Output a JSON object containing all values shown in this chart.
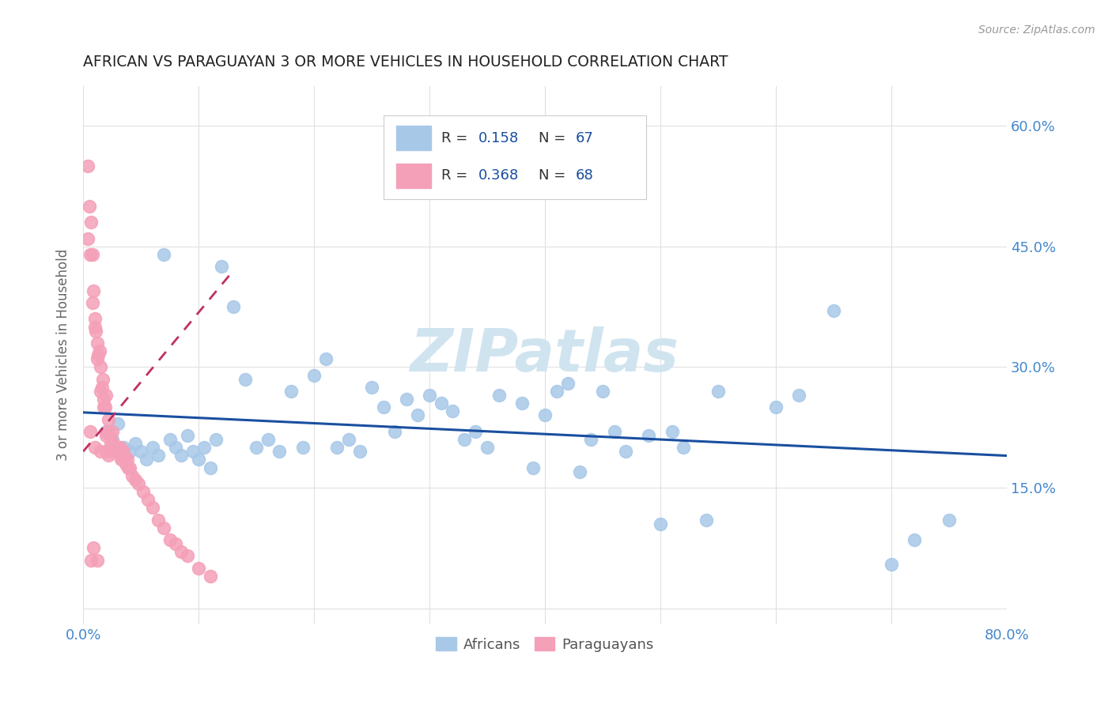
{
  "title": "AFRICAN VS PARAGUAYAN 3 OR MORE VEHICLES IN HOUSEHOLD CORRELATION CHART",
  "source": "Source: ZipAtlas.com",
  "ylabel": "3 or more Vehicles in Household",
  "x_tick_positions": [
    0.0,
    0.1,
    0.2,
    0.3,
    0.4,
    0.5,
    0.6,
    0.7,
    0.8
  ],
  "x_tick_labels": [
    "0.0%",
    "",
    "",
    "",
    "",
    "",
    "",
    "",
    "80.0%"
  ],
  "y_tick_positions": [
    0.0,
    0.15,
    0.3,
    0.45,
    0.6
  ],
  "y_tick_labels": [
    "",
    "15.0%",
    "30.0%",
    "45.0%",
    "60.0%"
  ],
  "xlim": [
    0.0,
    0.8
  ],
  "ylim": [
    -0.02,
    0.65
  ],
  "watermark": "ZIPatlas",
  "legend_R_african": "0.158",
  "legend_N_african": "67",
  "legend_R_paraguayan": "0.368",
  "legend_N_paraguayan": "68",
  "african_color": "#a8c8e8",
  "paraguayan_color": "#f4a0b8",
  "african_line_color": "#1a4fa0",
  "paraguayan_line_color": "#c03060",
  "background_color": "#ffffff",
  "grid_color": "#e0e0e0",
  "title_color": "#222222",
  "tick_color": "#4488cc",
  "ylabel_color": "#666666",
  "source_color": "#999999",
  "watermark_color": "#d0e4f0",
  "africans_x": [
    0.02,
    0.025,
    0.03,
    0.035,
    0.04,
    0.045,
    0.05,
    0.055,
    0.06,
    0.065,
    0.07,
    0.075,
    0.08,
    0.085,
    0.09,
    0.095,
    0.1,
    0.105,
    0.11,
    0.115,
    0.12,
    0.13,
    0.14,
    0.15,
    0.16,
    0.17,
    0.18,
    0.19,
    0.2,
    0.21,
    0.22,
    0.23,
    0.24,
    0.25,
    0.26,
    0.27,
    0.28,
    0.29,
    0.3,
    0.31,
    0.32,
    0.33,
    0.34,
    0.35,
    0.36,
    0.38,
    0.39,
    0.4,
    0.41,
    0.42,
    0.43,
    0.44,
    0.45,
    0.46,
    0.47,
    0.49,
    0.5,
    0.51,
    0.52,
    0.54,
    0.55,
    0.6,
    0.62,
    0.65,
    0.7,
    0.72,
    0.75
  ],
  "africans_y": [
    0.22,
    0.21,
    0.23,
    0.2,
    0.195,
    0.205,
    0.195,
    0.185,
    0.2,
    0.19,
    0.44,
    0.21,
    0.2,
    0.19,
    0.215,
    0.195,
    0.185,
    0.2,
    0.175,
    0.21,
    0.425,
    0.375,
    0.285,
    0.2,
    0.21,
    0.195,
    0.27,
    0.2,
    0.29,
    0.31,
    0.2,
    0.21,
    0.195,
    0.275,
    0.25,
    0.22,
    0.26,
    0.24,
    0.265,
    0.255,
    0.245,
    0.21,
    0.22,
    0.2,
    0.265,
    0.255,
    0.175,
    0.24,
    0.27,
    0.28,
    0.17,
    0.21,
    0.27,
    0.22,
    0.195,
    0.215,
    0.105,
    0.22,
    0.2,
    0.11,
    0.27,
    0.25,
    0.265,
    0.37,
    0.055,
    0.085,
    0.11
  ],
  "paraguayans_x": [
    0.004,
    0.005,
    0.006,
    0.007,
    0.008,
    0.009,
    0.01,
    0.01,
    0.011,
    0.012,
    0.013,
    0.014,
    0.015,
    0.015,
    0.016,
    0.017,
    0.018,
    0.019,
    0.02,
    0.02,
    0.021,
    0.022,
    0.023,
    0.024,
    0.025,
    0.025,
    0.026,
    0.027,
    0.028,
    0.029,
    0.03,
    0.03,
    0.031,
    0.032,
    0.033,
    0.034,
    0.035,
    0.036,
    0.037,
    0.038,
    0.039,
    0.04,
    0.042,
    0.045,
    0.048,
    0.052,
    0.056,
    0.06,
    0.065,
    0.07,
    0.075,
    0.08,
    0.085,
    0.09,
    0.1,
    0.11,
    0.004,
    0.006,
    0.008,
    0.01,
    0.012,
    0.015,
    0.018,
    0.022,
    0.007,
    0.009,
    0.012,
    0.02
  ],
  "paraguayans_y": [
    0.55,
    0.5,
    0.22,
    0.48,
    0.44,
    0.395,
    0.36,
    0.2,
    0.345,
    0.33,
    0.315,
    0.32,
    0.195,
    0.3,
    0.275,
    0.285,
    0.26,
    0.25,
    0.265,
    0.195,
    0.22,
    0.235,
    0.215,
    0.205,
    0.22,
    0.195,
    0.205,
    0.2,
    0.2,
    0.195,
    0.2,
    0.195,
    0.195,
    0.2,
    0.185,
    0.185,
    0.195,
    0.185,
    0.18,
    0.185,
    0.175,
    0.175,
    0.165,
    0.16,
    0.155,
    0.145,
    0.135,
    0.125,
    0.11,
    0.1,
    0.085,
    0.08,
    0.07,
    0.065,
    0.05,
    0.04,
    0.46,
    0.44,
    0.38,
    0.35,
    0.31,
    0.27,
    0.25,
    0.19,
    0.06,
    0.075,
    0.06,
    0.215
  ],
  "par_regline_x": [
    0.0,
    0.13
  ],
  "par_regline_y": [
    0.195,
    0.42
  ]
}
